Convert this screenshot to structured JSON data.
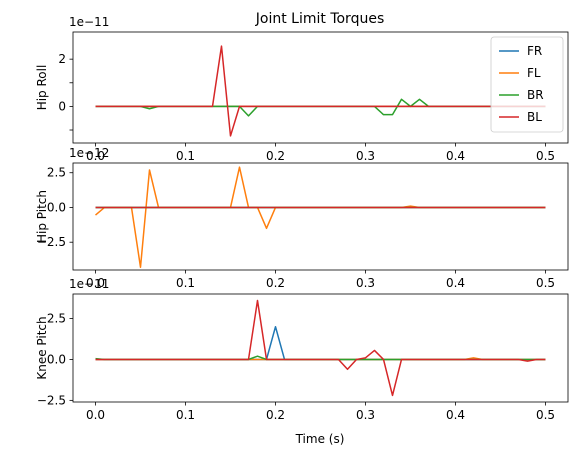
{
  "chart_data": {
    "type": "line",
    "title": "Joint Limit Torques",
    "xlabel": "Time (s)",
    "xlim": [
      -0.025,
      0.525
    ],
    "xticks": [
      0.0,
      0.1,
      0.2,
      0.3,
      0.4,
      0.5
    ],
    "xtick_labels": [
      "0.0",
      "0.1",
      "0.2",
      "0.3",
      "0.4",
      "0.5"
    ],
    "legend": {
      "placement": "top-right",
      "entries": [
        "FR",
        "FL",
        "BR",
        "BL"
      ]
    },
    "colors": {
      "FR": "#1f77b4",
      "FL": "#ff7f0e",
      "BR": "#2ca02c",
      "BL": "#d62728"
    },
    "x": [
      0.0,
      0.01,
      0.02,
      0.03,
      0.04,
      0.05,
      0.06,
      0.07,
      0.08,
      0.09,
      0.1,
      0.11,
      0.12,
      0.13,
      0.14,
      0.15,
      0.16,
      0.17,
      0.18,
      0.19,
      0.2,
      0.21,
      0.22,
      0.23,
      0.24,
      0.25,
      0.26,
      0.27,
      0.28,
      0.29,
      0.3,
      0.31,
      0.32,
      0.33,
      0.34,
      0.35,
      0.36,
      0.37,
      0.38,
      0.39,
      0.4,
      0.41,
      0.42,
      0.43,
      0.44,
      0.45,
      0.46,
      0.47,
      0.48,
      0.49,
      0.5
    ],
    "panels": [
      {
        "ylabel": "Hip Roll",
        "offset_text": "1e−11",
        "ylim": [
          -1.55,
          3.15
        ],
        "yticks": [
          -1,
          0,
          1,
          2
        ],
        "ytick_labels": [
          "",
          "0",
          "",
          "2"
        ],
        "series": [
          {
            "name": "FR",
            "values": [
              0,
              0,
              0,
              0,
              0,
              0,
              0,
              0,
              0,
              0,
              0,
              0,
              0,
              0,
              0,
              0,
              0,
              0,
              0,
              0,
              0,
              0,
              0,
              0,
              0,
              0,
              0,
              0,
              0,
              0,
              0,
              0,
              0,
              0,
              0,
              0,
              0,
              0,
              0,
              0,
              0,
              0,
              0,
              0,
              0,
              0,
              0,
              0,
              0,
              0,
              0
            ]
          },
          {
            "name": "FL",
            "values": [
              0,
              0,
              0,
              0,
              0,
              0,
              0,
              0,
              0,
              0,
              0,
              0,
              0,
              0,
              0,
              0,
              0,
              0,
              0,
              0,
              0,
              0,
              0,
              0,
              0,
              0,
              0,
              0,
              0,
              0,
              0,
              0,
              0,
              0,
              0,
              0,
              0,
              0,
              0,
              0,
              0,
              0,
              0,
              0,
              0,
              0,
              0,
              0,
              0,
              0,
              0
            ]
          },
          {
            "name": "BR",
            "values": [
              0,
              0,
              0,
              0,
              0,
              0,
              -0.1,
              0,
              0,
              0,
              0,
              0,
              0,
              0,
              0,
              0,
              0,
              -0.4,
              0,
              0,
              0,
              0,
              0,
              0,
              0,
              0,
              0,
              0,
              0,
              0,
              0,
              0,
              -0.35,
              -0.35,
              0.3,
              0,
              0.3,
              0,
              0,
              0,
              0,
              0,
              0,
              0,
              0,
              0,
              0,
              0,
              0,
              0,
              0
            ]
          },
          {
            "name": "BL",
            "values": [
              0,
              0,
              0,
              0,
              0,
              0,
              0,
              0,
              0,
              0,
              0,
              0,
              0,
              0,
              2.55,
              -1.25,
              0,
              0,
              0,
              0,
              0,
              0,
              0,
              0,
              0,
              0,
              0,
              0,
              0,
              0,
              0,
              0,
              0,
              0,
              0,
              0,
              0,
              0,
              0,
              0,
              0,
              0,
              0,
              0,
              0,
              0,
              0,
              0,
              0,
              0,
              0
            ]
          }
        ]
      },
      {
        "ylabel": "Hip Pitch",
        "offset_text": "1e−12",
        "ylim": [
          -4.5,
          3.2
        ],
        "yticks": [
          -2.5,
          0.0,
          2.5
        ],
        "ytick_labels": [
          "−2.5",
          "0.0",
          "2.5"
        ],
        "series": [
          {
            "name": "FR",
            "values": [
              0,
              0,
              0,
              0,
              0,
              0,
              0,
              0,
              0,
              0,
              0,
              0,
              0,
              0,
              0,
              0,
              0,
              0,
              0,
              0,
              0,
              0,
              0,
              0,
              0,
              0,
              0,
              0,
              0,
              0,
              0,
              0,
              0,
              0,
              0,
              0,
              0,
              0,
              0,
              0,
              0,
              0,
              0,
              0,
              0,
              0,
              0,
              0,
              0,
              0,
              0
            ]
          },
          {
            "name": "FL",
            "values": [
              -0.55,
              0,
              0,
              0,
              0,
              -4.3,
              2.7,
              0,
              0,
              0,
              0,
              0,
              0,
              0,
              0,
              0,
              2.9,
              0,
              0,
              -1.5,
              0,
              0,
              0,
              0,
              0,
              0,
              0,
              0,
              0,
              0,
              0,
              0,
              0,
              0,
              0,
              0.1,
              0,
              0,
              0,
              0,
              0,
              0,
              0,
              0,
              0,
              0,
              0,
              0,
              0,
              0,
              0
            ]
          },
          {
            "name": "BR",
            "values": [
              0,
              0,
              0,
              0,
              0,
              0,
              0,
              0,
              0,
              0,
              0,
              0,
              0,
              0,
              0,
              0,
              0,
              0,
              0,
              0,
              0,
              0,
              0,
              0,
              0,
              0,
              0,
              0,
              0,
              0,
              0,
              0,
              0,
              0,
              0,
              0,
              0,
              0,
              0,
              0,
              0,
              0,
              0,
              0,
              0,
              0,
              0,
              0,
              0,
              0,
              0
            ]
          },
          {
            "name": "BL",
            "values": [
              0,
              0,
              0,
              0,
              0,
              0,
              0,
              0,
              0,
              0,
              0,
              0,
              0,
              0,
              0,
              0,
              0,
              0,
              0,
              0,
              0,
              0,
              0,
              0,
              0,
              0,
              0,
              0,
              0,
              0,
              0,
              0,
              0,
              0,
              0,
              0,
              0,
              0,
              0,
              0,
              0,
              0,
              0,
              0,
              0,
              0,
              0,
              0,
              0,
              0,
              0
            ]
          }
        ]
      },
      {
        "ylabel": "Knee Pitch",
        "offset_text": "1e−11",
        "ylim": [
          -2.6,
          4.0
        ],
        "yticks": [
          -2.5,
          0.0,
          2.5
        ],
        "ytick_labels": [
          "−2.5",
          "0.0",
          "2.5"
        ],
        "series": [
          {
            "name": "FR",
            "values": [
              0,
              0,
              0,
              0,
              0,
              0,
              0,
              0,
              0,
              0,
              0,
              0,
              0,
              0,
              0,
              0,
              0,
              0,
              0,
              0,
              2.0,
              0,
              0,
              0,
              0,
              0,
              0,
              0,
              0,
              0,
              0,
              0,
              0,
              0,
              0,
              0,
              0,
              0,
              0,
              0,
              0,
              0,
              0,
              0,
              0,
              0,
              0,
              0,
              0,
              0,
              0
            ]
          },
          {
            "name": "FL",
            "values": [
              0,
              0,
              0,
              0,
              0,
              0,
              0,
              0,
              0,
              0,
              0,
              0,
              0,
              0,
              0,
              0,
              0,
              0,
              0,
              0,
              0,
              0,
              0,
              0,
              0,
              0,
              0,
              0,
              0,
              0,
              0,
              0,
              0,
              0,
              0,
              0,
              0,
              0,
              0,
              0,
              0,
              0,
              0.1,
              0,
              0,
              0,
              0,
              0,
              0,
              0,
              0
            ]
          },
          {
            "name": "BR",
            "values": [
              0.05,
              0,
              0,
              0,
              0,
              0,
              0,
              0,
              0,
              0,
              0,
              0,
              0,
              0,
              0,
              0,
              0,
              0,
              0.2,
              0,
              0,
              0,
              0,
              0,
              0,
              0,
              0,
              0,
              0,
              0,
              0,
              0,
              0,
              0,
              0,
              0,
              0,
              0,
              0,
              0,
              0,
              0,
              0,
              0,
              0,
              0,
              0,
              0,
              0,
              0,
              0
            ]
          },
          {
            "name": "BL",
            "values": [
              0,
              0,
              0,
              0,
              0,
              0,
              0,
              0,
              0,
              0,
              0,
              0,
              0,
              0,
              0,
              0,
              0,
              0,
              3.6,
              0,
              0,
              0,
              0,
              0,
              0,
              0,
              0,
              0,
              -0.6,
              0,
              0.1,
              0.55,
              0,
              -2.2,
              0,
              0,
              0,
              0,
              0,
              0,
              0,
              0,
              0,
              0,
              0,
              0,
              0,
              0,
              -0.1,
              0,
              0
            ]
          }
        ]
      }
    ]
  }
}
